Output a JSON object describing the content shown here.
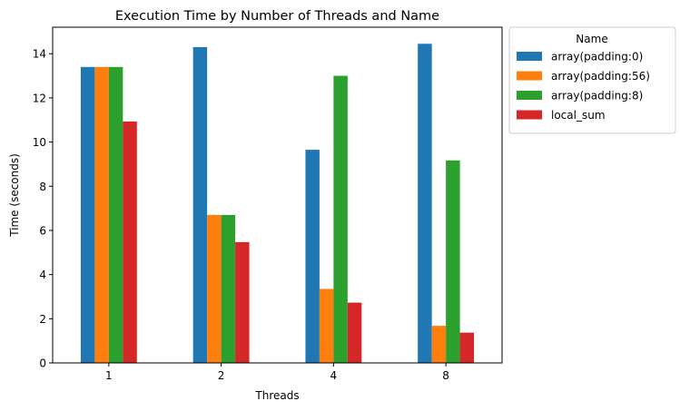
{
  "chart_data": {
    "type": "bar",
    "title": "Execution Time by Number of Threads and Name",
    "xlabel": "Threads",
    "ylabel": "Time (seconds)",
    "categories": [
      "1",
      "2",
      "4",
      "8"
    ],
    "ylim": [
      0,
      15.2
    ],
    "yticks": [
      0,
      2,
      4,
      6,
      8,
      10,
      12,
      14
    ],
    "grid": false,
    "legend": {
      "title": "Name",
      "placement": "outside-top-right"
    },
    "series": [
      {
        "name": "array(padding:0)",
        "color": "#1f77b4",
        "values": [
          13.4,
          14.3,
          9.65,
          14.45
        ]
      },
      {
        "name": "array(padding:56)",
        "color": "#ff7f0e",
        "values": [
          13.4,
          6.7,
          3.35,
          1.68
        ]
      },
      {
        "name": "array(padding:8)",
        "color": "#2ca02c",
        "values": [
          13.4,
          6.7,
          13.0,
          9.17
        ]
      },
      {
        "name": "local_sum",
        "color": "#d62728",
        "values": [
          10.93,
          5.47,
          2.73,
          1.37
        ]
      }
    ]
  }
}
